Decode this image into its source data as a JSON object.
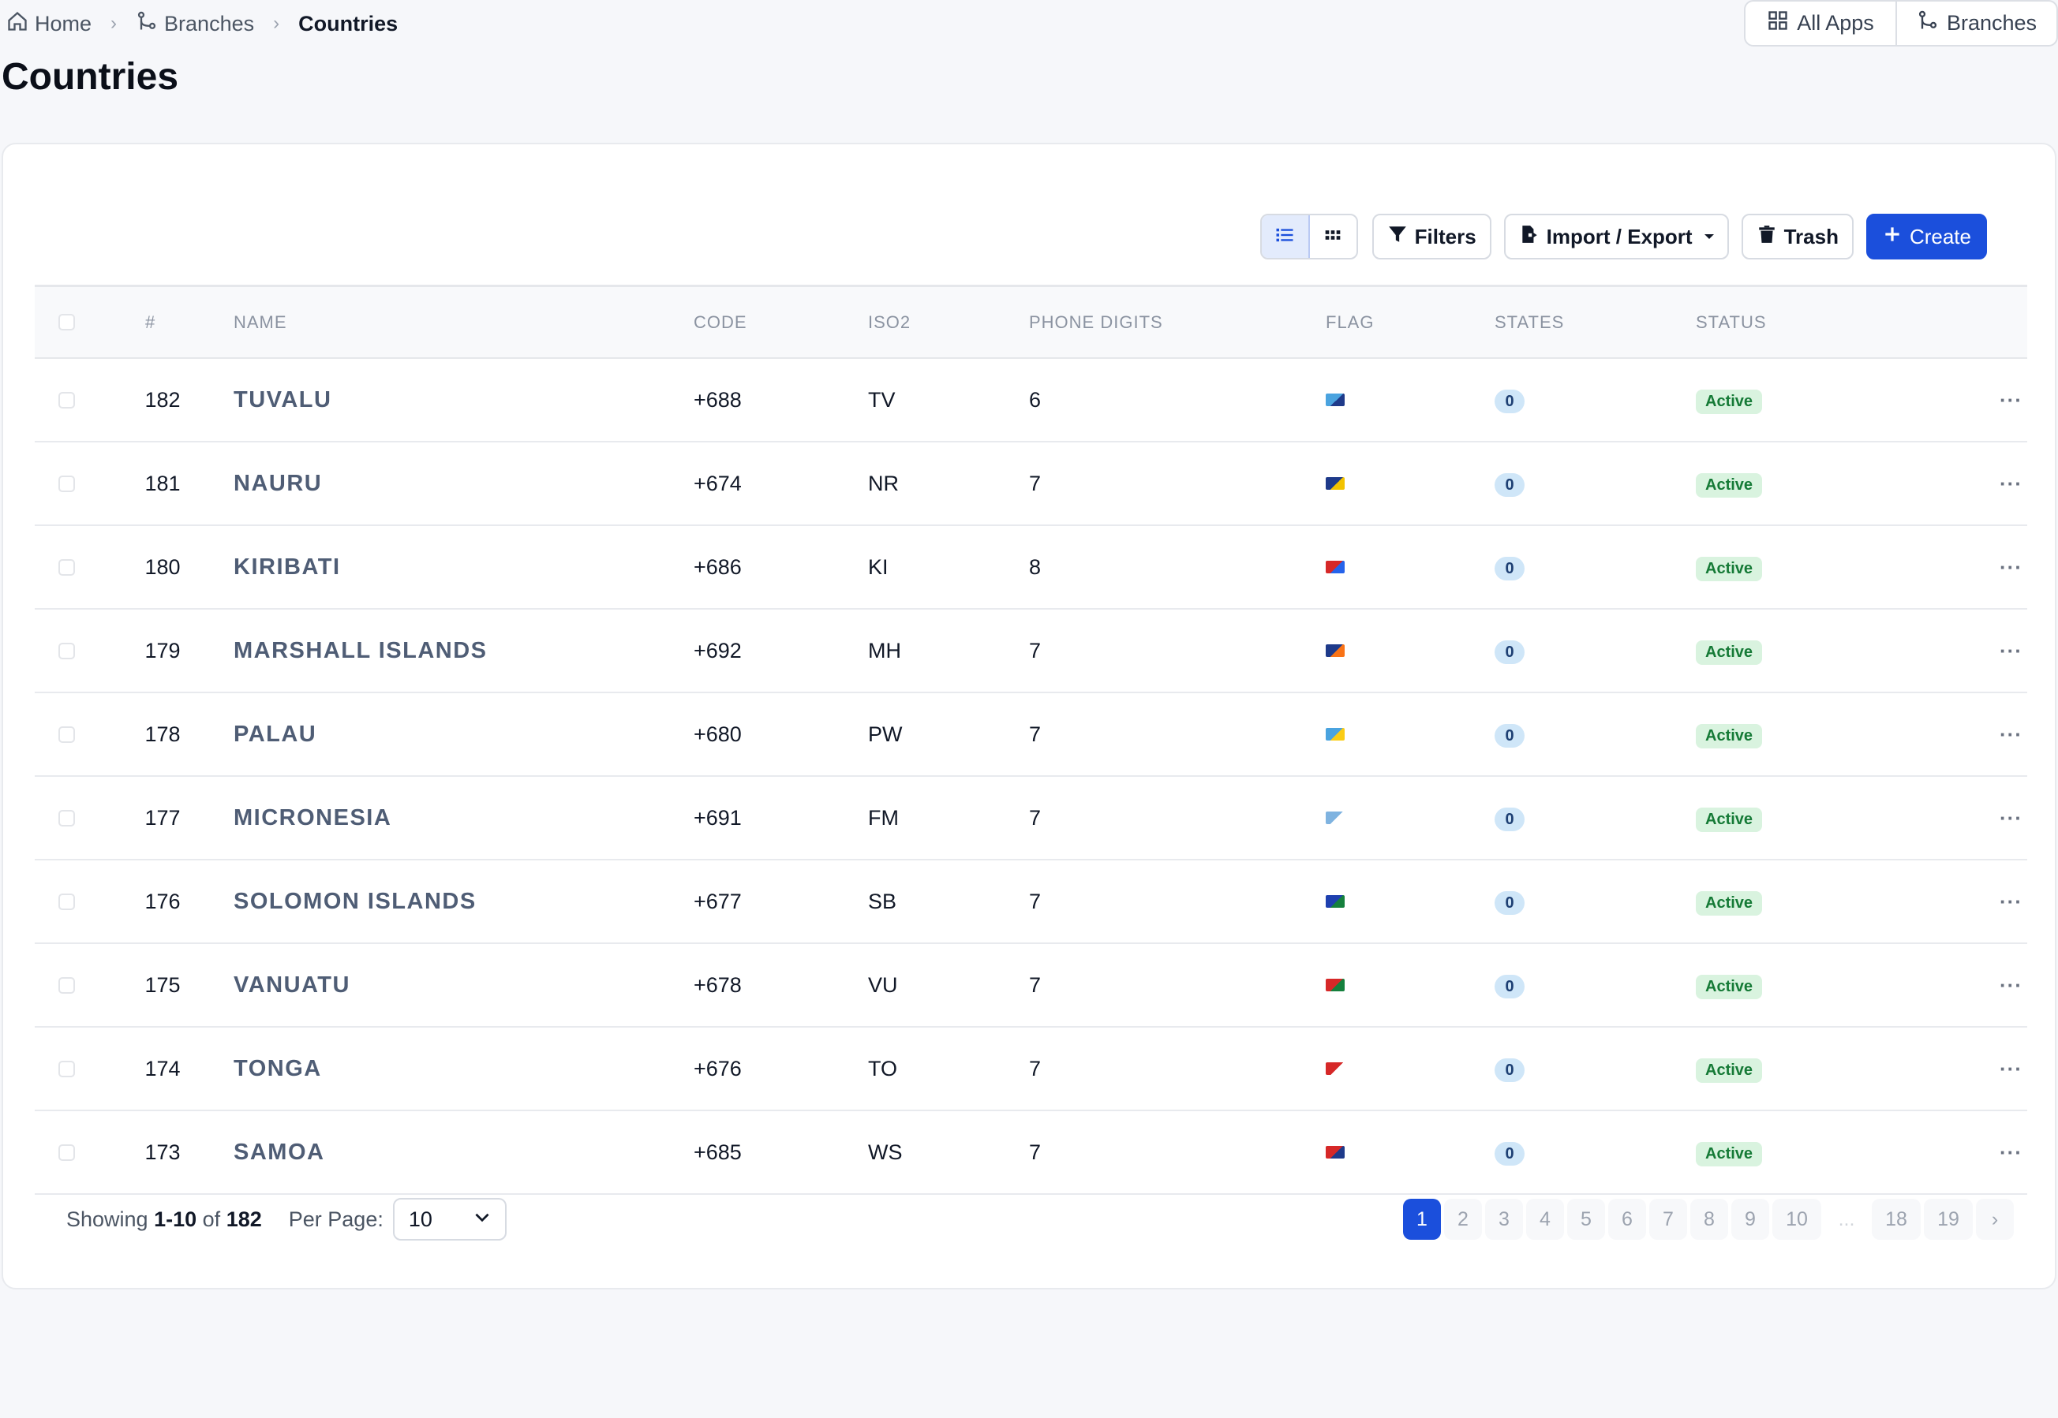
{
  "breadcrumb": {
    "home": "Home",
    "branches": "Branches",
    "current": "Countries"
  },
  "page_title": "Countries",
  "topnav": {
    "all_apps": "All Apps",
    "branches": "Branches"
  },
  "toolbar": {
    "filters": "Filters",
    "import_export": "Import / Export",
    "trash": "Trash",
    "create": "Create"
  },
  "table": {
    "headers": {
      "num": "#",
      "name": "NAME",
      "code": "CODE",
      "iso2": "ISO2",
      "phone_digits": "PHONE DIGITS",
      "flag": "FLAG",
      "states": "STATES",
      "status": "STATUS"
    },
    "rows": [
      {
        "num": "182",
        "name": "TUVALU",
        "code": "+688",
        "iso2": "TV",
        "phone_digits": "6",
        "states": "0",
        "status": "Active",
        "flag_colors": [
          "#4aa3df",
          "#1f3a8a"
        ]
      },
      {
        "num": "181",
        "name": "NAURU",
        "code": "+674",
        "iso2": "NR",
        "phone_digits": "7",
        "states": "0",
        "status": "Active",
        "flag_colors": [
          "#1e3a8a",
          "#f2c200"
        ]
      },
      {
        "num": "180",
        "name": "KIRIBATI",
        "code": "+686",
        "iso2": "KI",
        "phone_digits": "8",
        "states": "0",
        "status": "Active",
        "flag_colors": [
          "#d62828",
          "#2563eb"
        ]
      },
      {
        "num": "179",
        "name": "MARSHALL ISLANDS",
        "code": "+692",
        "iso2": "MH",
        "phone_digits": "7",
        "states": "0",
        "status": "Active",
        "flag_colors": [
          "#1e3a8a",
          "#f97316"
        ]
      },
      {
        "num": "178",
        "name": "PALAU",
        "code": "+680",
        "iso2": "PW",
        "phone_digits": "7",
        "states": "0",
        "status": "Active",
        "flag_colors": [
          "#4aa3df",
          "#facc15"
        ]
      },
      {
        "num": "177",
        "name": "MICRONESIA",
        "code": "+691",
        "iso2": "FM",
        "phone_digits": "7",
        "states": "0",
        "status": "Active",
        "flag_colors": [
          "#7fb3e0",
          "#ffffff"
        ]
      },
      {
        "num": "176",
        "name": "SOLOMON ISLANDS",
        "code": "+677",
        "iso2": "SB",
        "phone_digits": "7",
        "states": "0",
        "status": "Active",
        "flag_colors": [
          "#1e40af",
          "#15803d"
        ]
      },
      {
        "num": "175",
        "name": "VANUATU",
        "code": "+678",
        "iso2": "VU",
        "phone_digits": "7",
        "states": "0",
        "status": "Active",
        "flag_colors": [
          "#d62828",
          "#15803d"
        ]
      },
      {
        "num": "174",
        "name": "TONGA",
        "code": "+676",
        "iso2": "TO",
        "phone_digits": "7",
        "states": "0",
        "status": "Active",
        "flag_colors": [
          "#d62828",
          "#ffffff"
        ]
      },
      {
        "num": "173",
        "name": "SAMOA",
        "code": "+685",
        "iso2": "WS",
        "phone_digits": "7",
        "states": "0",
        "status": "Active",
        "flag_colors": [
          "#d62828",
          "#1e3a8a"
        ]
      }
    ]
  },
  "footer": {
    "showing_prefix": "Showing",
    "range": "1-10",
    "of_word": "of",
    "total": "182",
    "per_page_label": "Per Page:",
    "per_page_value": "10"
  },
  "pagination": {
    "pages": [
      "1",
      "2",
      "3",
      "4",
      "5",
      "6",
      "7",
      "8",
      "9",
      "10"
    ],
    "tail_pages": [
      "18",
      "19"
    ],
    "ellipsis": "...",
    "next": "›",
    "active_page": "1"
  },
  "colors": {
    "primary": "#1b4fdc",
    "status_active_bg": "#d9f3df",
    "status_active_text": "#157a36",
    "states_badge_bg": "#cfe6f8"
  }
}
